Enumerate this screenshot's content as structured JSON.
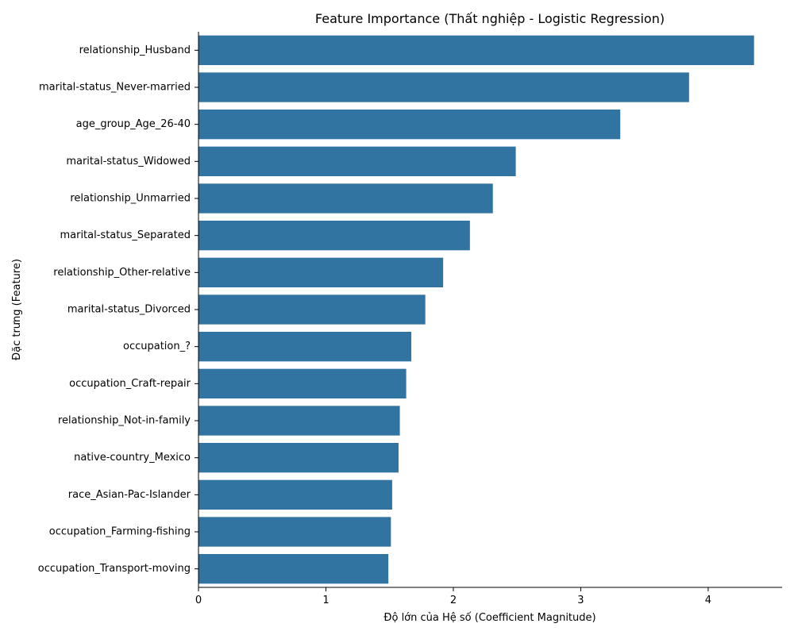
{
  "chart_data": {
    "type": "bar",
    "orientation": "horizontal",
    "title": "Feature Importance (Thất nghiệp - Logistic Regression)",
    "xlabel": "Độ lớn của Hệ số (Coefficient Magnitude)",
    "ylabel": "Đặc trưng (Feature)",
    "xlim": [
      0,
      4.58
    ],
    "xticks": [
      0,
      1,
      2,
      3,
      4
    ],
    "grid": false,
    "bar_color": "#3274a1",
    "categories": [
      "relationship_Husband",
      "marital-status_Never-married",
      "age_group_Age_26-40",
      "marital-status_Widowed",
      "relationship_Unmarried",
      "marital-status_Separated",
      "relationship_Other-relative",
      "marital-status_Divorced",
      "occupation_?",
      "occupation_Craft-repair",
      "relationship_Not-in-family",
      "native-country_Mexico",
      "race_Asian-Pac-Islander",
      "occupation_Farming-fishing",
      "occupation_Transport-moving"
    ],
    "values": [
      4.36,
      3.85,
      3.31,
      2.49,
      2.31,
      2.13,
      1.92,
      1.78,
      1.67,
      1.63,
      1.58,
      1.57,
      1.52,
      1.51,
      1.49
    ]
  }
}
